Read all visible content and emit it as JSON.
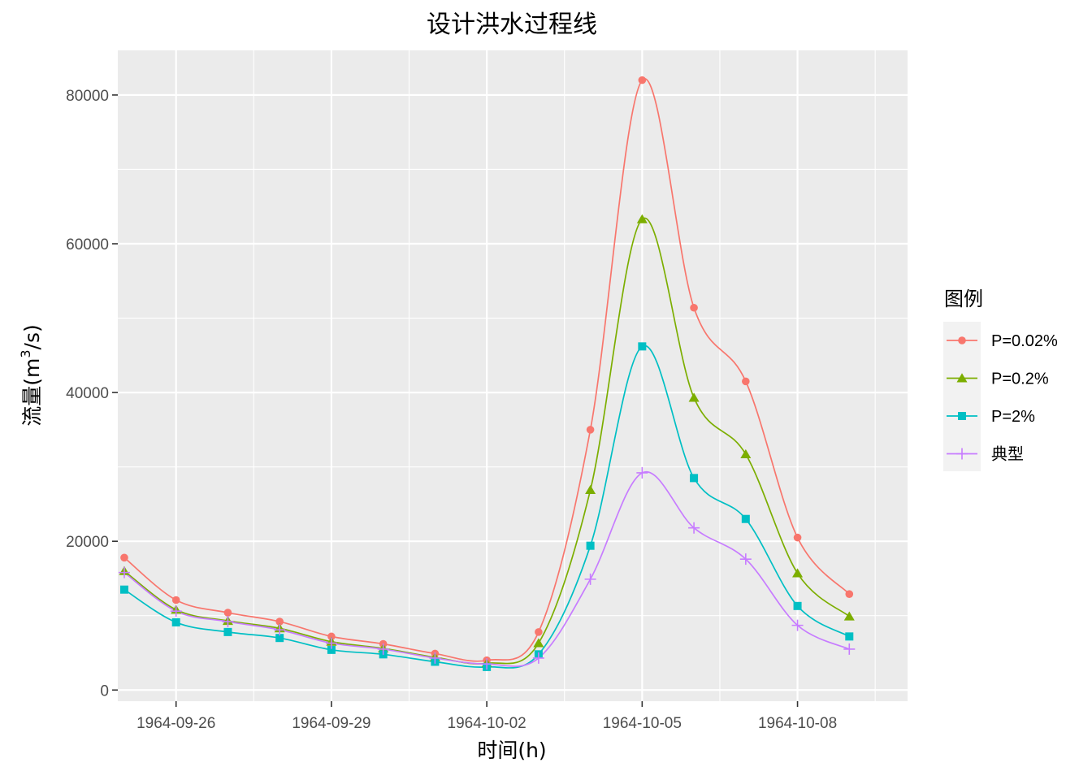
{
  "chart_data": {
    "type": "line",
    "title": "设计洪水过程线",
    "xlabel": "时间(h)",
    "ylabel_prefix": "流量(m",
    "ylabel_sup": "3",
    "ylabel_suffix": "/s)",
    "legend_title": "图例",
    "legend_position": "right",
    "grid": true,
    "panel_background": "#ebebeb",
    "grid_color": "#ffffff",
    "ylim": [
      -1500,
      86000
    ],
    "yticks": [
      0,
      20000,
      40000,
      60000,
      80000
    ],
    "ytick_labels": [
      "0",
      "20000",
      "40000",
      "60000",
      "80000"
    ],
    "xlim": [
      "1964-09-24T21:00",
      "1964-10-10T03:00"
    ],
    "xticks": [
      "1964-09-26",
      "1964-09-29",
      "1964-10-02",
      "1964-10-05",
      "1964-10-08"
    ],
    "xtick_labels": [
      "1964-09-26",
      "1964-09-29",
      "1964-10-02",
      "1964-10-05",
      "1964-10-08"
    ],
    "x": [
      "1964-09-25",
      "1964-09-26",
      "1964-09-27",
      "1964-09-28",
      "1964-09-29",
      "1964-09-30",
      "1964-10-01",
      "1964-10-02",
      "1964-10-03",
      "1964-10-04",
      "1964-10-05",
      "1964-10-06",
      "1964-10-07",
      "1964-10-08",
      "1964-10-09"
    ],
    "series": [
      {
        "name": "P=0.02%",
        "color": "#F8766D",
        "shape": "circle",
        "values": [
          17800,
          12100,
          10400,
          9200,
          7200,
          6200,
          4900,
          4000,
          7800,
          35000,
          82000,
          51400,
          41500,
          20500,
          12900
        ]
      },
      {
        "name": "P=0.2%",
        "color": "#7CAE00",
        "shape": "triangle",
        "values": [
          16000,
          10800,
          9300,
          8300,
          6500,
          5600,
          4400,
          3600,
          6300,
          26900,
          63300,
          39300,
          31700,
          15700,
          9900
        ]
      },
      {
        "name": "P=2%",
        "color": "#00BFC4",
        "shape": "square",
        "values": [
          13500,
          9100,
          7800,
          7000,
          5400,
          4800,
          3800,
          3100,
          4800,
          19400,
          46200,
          28500,
          23000,
          11300,
          7200
        ]
      },
      {
        "name": "典型",
        "color": "#C77CFF",
        "shape": "plus",
        "values": [
          15800,
          10600,
          9200,
          8100,
          6300,
          5500,
          4300,
          3500,
          4300,
          14900,
          29200,
          21800,
          17600,
          8700,
          5500
        ]
      }
    ]
  }
}
